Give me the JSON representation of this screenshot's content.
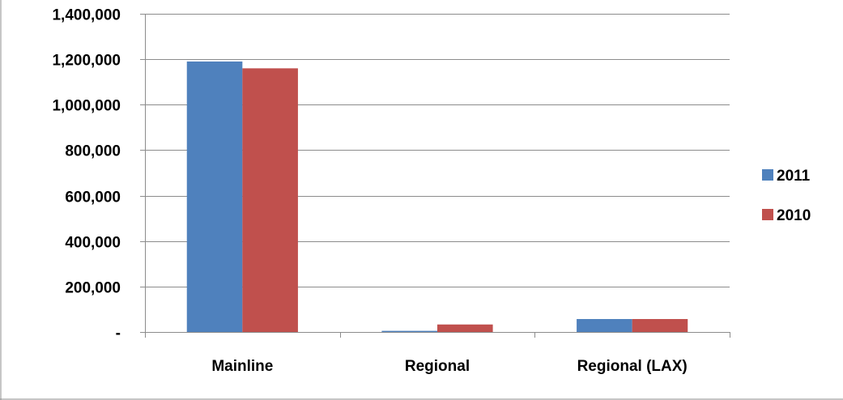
{
  "chart_data": {
    "type": "bar",
    "title": "",
    "xlabel": "",
    "ylabel": "",
    "categories": [
      "Mainline",
      "Regional",
      "Regional (LAX)"
    ],
    "series": [
      {
        "name": "2011",
        "color": "#4F81BD",
        "values": [
          1190000,
          5000,
          57000
        ]
      },
      {
        "name": "2010",
        "color": "#C0504D",
        "values": [
          1160000,
          33000,
          57000
        ]
      }
    ],
    "ylim": [
      0,
      1400000
    ],
    "yticks": [
      0,
      200000,
      400000,
      600000,
      800000,
      1000000,
      1200000,
      1400000
    ],
    "ytick_labels": [
      "-",
      "200,000",
      "400,000",
      "600,000",
      "800,000",
      "1,000,000",
      "1,200,000",
      "1,400,000"
    ],
    "grid": true,
    "legend_position": "right"
  }
}
